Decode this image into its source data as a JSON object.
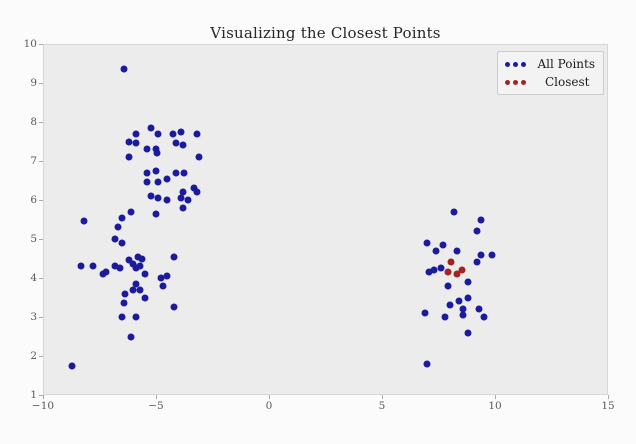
{
  "chart_data": {
    "type": "scatter",
    "title": "Visualizing the Closest Points",
    "xlabel": "",
    "ylabel": "",
    "xlim": [
      -10,
      15
    ],
    "ylim": [
      1,
      10
    ],
    "x_ticks": [
      -10,
      -5,
      0,
      5,
      10,
      15
    ],
    "y_ticks": [
      1,
      2,
      3,
      4,
      5,
      6,
      7,
      8,
      9,
      10
    ],
    "grid": false,
    "legend_position": "upper right",
    "plot_background": "#ececec",
    "marker_size_px": 7,
    "series": [
      {
        "name": "All Points",
        "color": "#1b1b9e",
        "points": [
          [
            -6.4,
            9.35
          ],
          [
            -5.9,
            7.7
          ],
          [
            -5.2,
            7.85
          ],
          [
            -4.9,
            7.7
          ],
          [
            -4.25,
            7.7
          ],
          [
            -3.9,
            7.75
          ],
          [
            -3.2,
            7.7
          ],
          [
            -6.2,
            7.5
          ],
          [
            -5.9,
            7.45
          ],
          [
            -4.1,
            7.45
          ],
          [
            -3.8,
            7.4
          ],
          [
            -5.4,
            7.3
          ],
          [
            -5.0,
            7.3
          ],
          [
            -4.95,
            7.2
          ],
          [
            -6.2,
            7.1
          ],
          [
            -3.1,
            7.1
          ],
          [
            -5.4,
            6.7
          ],
          [
            -5.0,
            6.75
          ],
          [
            -4.1,
            6.7
          ],
          [
            -3.75,
            6.7
          ],
          [
            -5.4,
            6.45
          ],
          [
            -4.9,
            6.45
          ],
          [
            -4.5,
            6.55
          ],
          [
            -3.3,
            6.3
          ],
          [
            -3.2,
            6.2
          ],
          [
            -3.8,
            6.2
          ],
          [
            -5.2,
            6.1
          ],
          [
            -4.9,
            6.05
          ],
          [
            -4.5,
            6.0
          ],
          [
            -3.9,
            6.05
          ],
          [
            -3.6,
            6.0
          ],
          [
            -8.2,
            5.45
          ],
          [
            -6.7,
            5.3
          ],
          [
            -6.5,
            5.55
          ],
          [
            -6.1,
            5.7
          ],
          [
            -5.0,
            5.65
          ],
          [
            -3.8,
            5.8
          ],
          [
            -6.8,
            5.0
          ],
          [
            -6.5,
            4.9
          ],
          [
            -5.8,
            4.55
          ],
          [
            -5.6,
            4.5
          ],
          [
            -6.2,
            4.45
          ],
          [
            -4.2,
            4.55
          ],
          [
            -8.3,
            4.3
          ],
          [
            -7.8,
            4.3
          ],
          [
            -7.2,
            4.15
          ],
          [
            -7.35,
            4.1
          ],
          [
            -6.8,
            4.3
          ],
          [
            -6.6,
            4.25
          ],
          [
            -6.0,
            4.35
          ],
          [
            -5.9,
            4.25
          ],
          [
            -5.7,
            4.3
          ],
          [
            -5.5,
            4.1
          ],
          [
            -4.8,
            4.0
          ],
          [
            -4.5,
            4.05
          ],
          [
            -5.9,
            3.85
          ],
          [
            -5.7,
            3.7
          ],
          [
            -6.0,
            3.7
          ],
          [
            -6.35,
            3.6
          ],
          [
            -5.5,
            3.5
          ],
          [
            -4.7,
            3.8
          ],
          [
            -6.4,
            3.35
          ],
          [
            -4.2,
            3.25
          ],
          [
            -6.5,
            3.0
          ],
          [
            -5.9,
            3.0
          ],
          [
            -6.1,
            2.5
          ],
          [
            -8.7,
            1.75
          ],
          [
            8.2,
            5.7
          ],
          [
            9.4,
            5.5
          ],
          [
            9.2,
            5.2
          ],
          [
            7.0,
            4.9
          ],
          [
            7.7,
            4.85
          ],
          [
            7.4,
            4.7
          ],
          [
            8.3,
            4.7
          ],
          [
            9.4,
            4.6
          ],
          [
            9.85,
            4.6
          ],
          [
            9.2,
            4.4
          ],
          [
            7.6,
            4.25
          ],
          [
            7.3,
            4.2
          ],
          [
            7.1,
            4.15
          ],
          [
            8.8,
            3.9
          ],
          [
            7.9,
            3.8
          ],
          [
            8.8,
            3.5
          ],
          [
            8.4,
            3.4
          ],
          [
            8.0,
            3.3
          ],
          [
            6.9,
            3.1
          ],
          [
            7.8,
            3.0
          ],
          [
            8.6,
            3.2
          ],
          [
            8.6,
            3.05
          ],
          [
            9.3,
            3.2
          ],
          [
            9.5,
            3.0
          ],
          [
            8.8,
            2.6
          ],
          [
            7.0,
            1.8
          ]
        ]
      },
      {
        "name": "Closest",
        "color": "#a32222",
        "points": [
          [
            8.05,
            4.4
          ],
          [
            8.55,
            4.2
          ],
          [
            7.9,
            4.15
          ],
          [
            8.3,
            4.1
          ]
        ]
      }
    ]
  },
  "legend": {
    "entries": [
      {
        "label": "All Points",
        "color": "#1b1b9e"
      },
      {
        "label": "Closest",
        "color": "#a32222"
      }
    ]
  }
}
